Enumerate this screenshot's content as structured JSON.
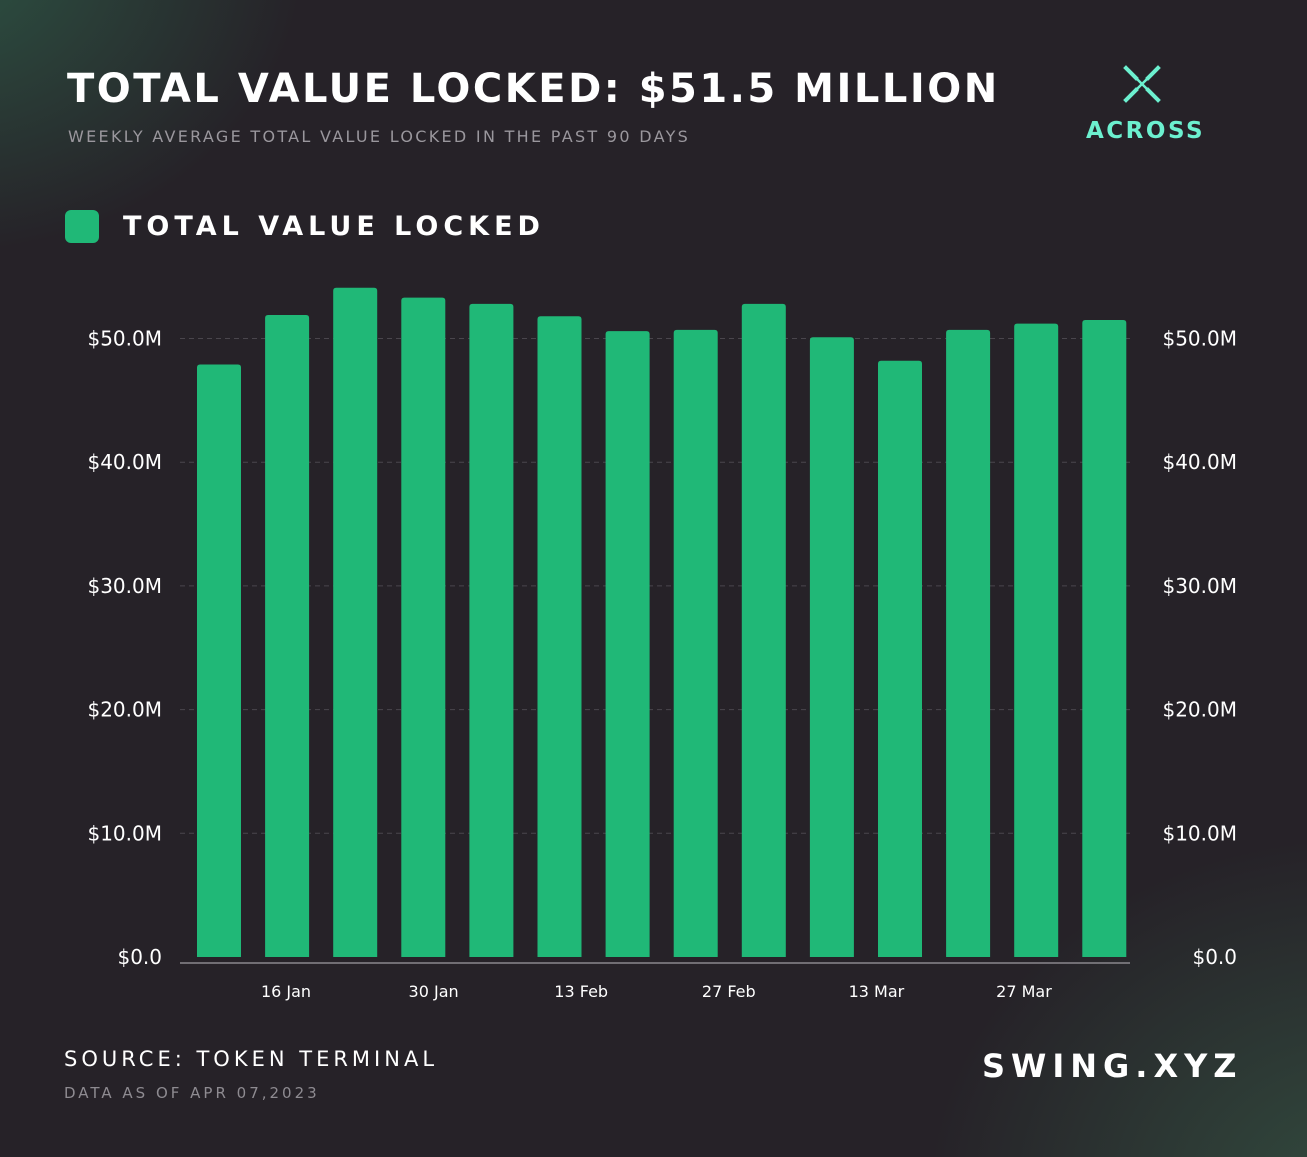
{
  "header": {
    "title": "TOTAL VALUE LOCKED: $51.5 MILLION",
    "subtitle": "WEEKLY AVERAGE TOTAL VALUE LOCKED IN THE PAST 90 DAYS"
  },
  "logo": {
    "brand": "ACROSS",
    "icon": "across-x-icon",
    "color": "#6cf0cf"
  },
  "legend": {
    "label": "TOTAL VALUE LOCKED",
    "color": "#20b877"
  },
  "chart_data": {
    "type": "bar",
    "ylim": [
      0,
      55
    ],
    "y_ticks": [
      0,
      10,
      20,
      30,
      40,
      50
    ],
    "y_tick_labels": [
      "$0.0",
      "$10.0M",
      "$20.0M",
      "$30.0M",
      "$40.0M",
      "$50.0M"
    ],
    "y_axis_both_sides": true,
    "grid": "horizontal-dashed",
    "x_tick_labels": [
      "16 Jan",
      "30 Jan",
      "13 Feb",
      "27 Feb",
      "13 Mar",
      "27 Mar"
    ],
    "series": [
      {
        "name": "TOTAL VALUE LOCKED",
        "color": "#20b877",
        "values": [
          47.9,
          51.9,
          54.1,
          53.3,
          52.8,
          51.8,
          50.6,
          50.7,
          52.8,
          50.1,
          48.2,
          50.7,
          51.2,
          51.5
        ]
      }
    ]
  },
  "footer": {
    "source": "SOURCE: TOKEN TERMINAL",
    "data_as_of": "DATA AS OF APR 07,2023",
    "site": "SWING.XYZ"
  }
}
